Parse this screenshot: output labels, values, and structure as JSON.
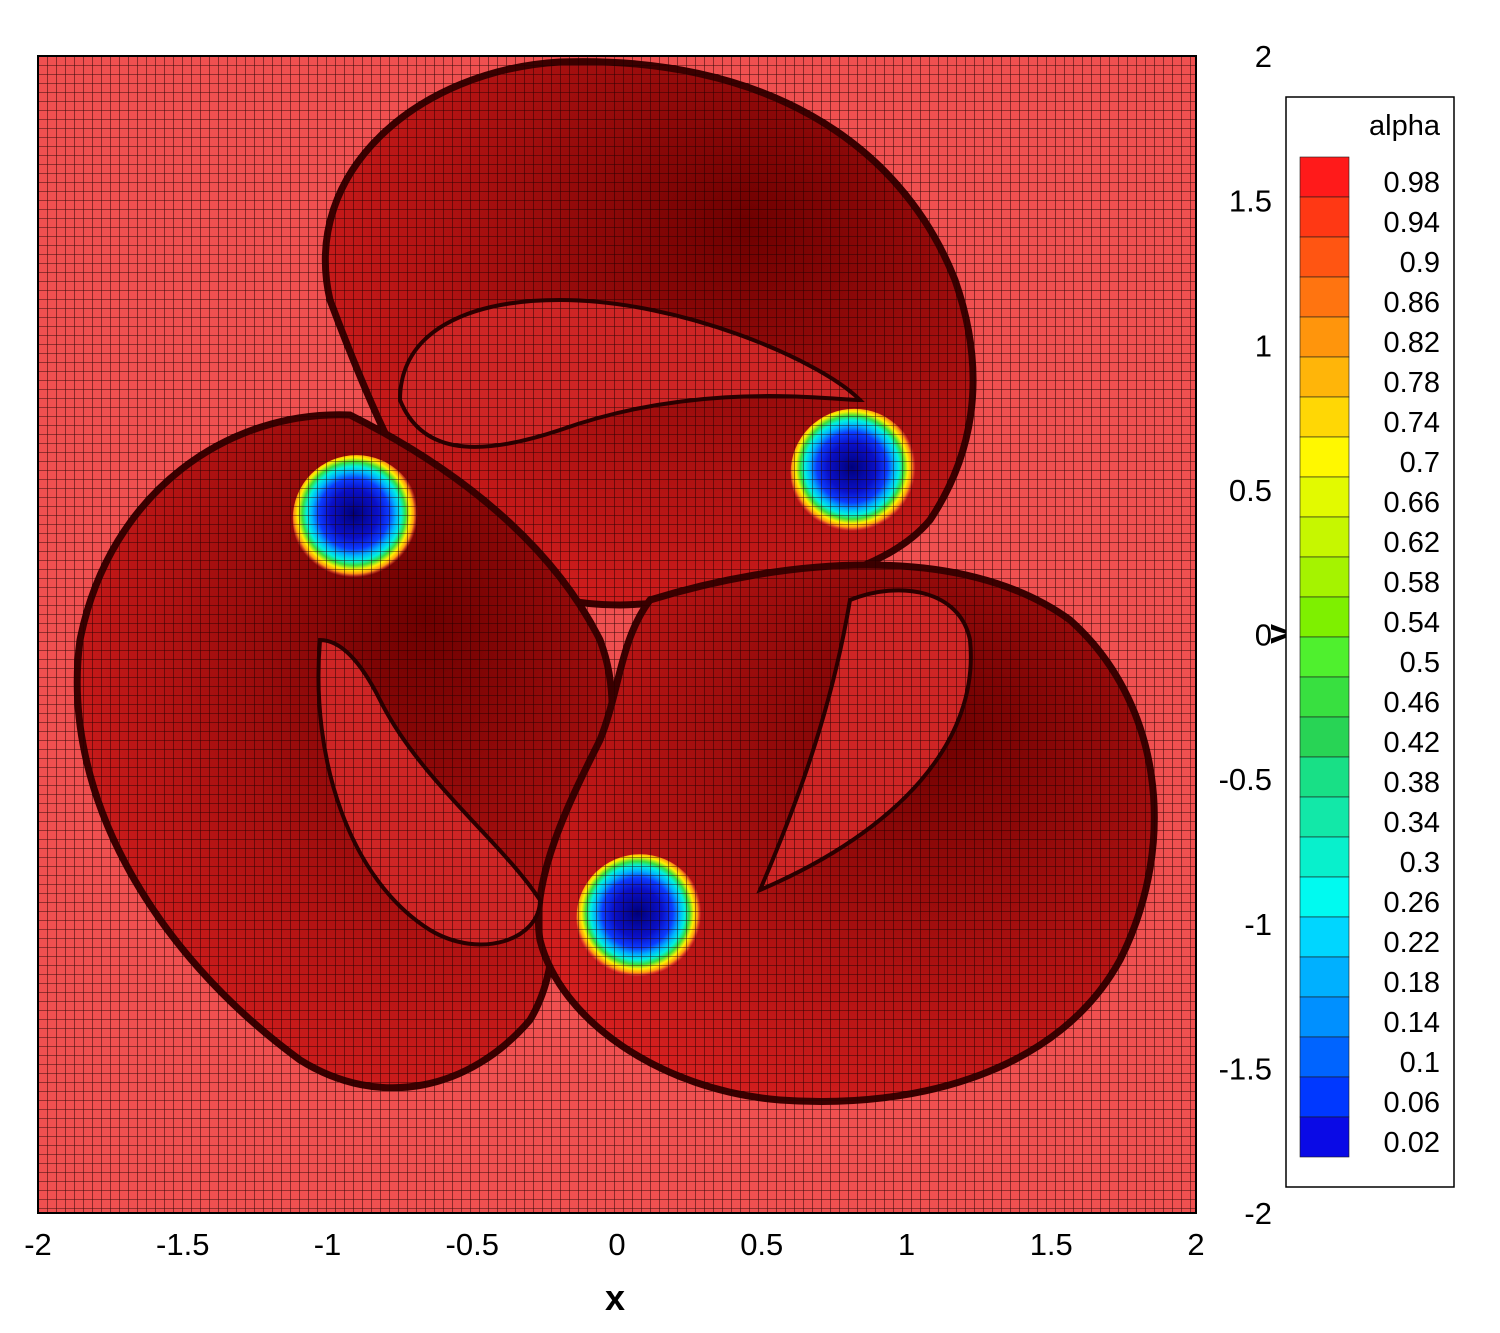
{
  "chart_data": {
    "type": "heatmap",
    "title": "",
    "xlabel": "x",
    "ylabel": "y",
    "xlim": [
      -2,
      2
    ],
    "ylim": [
      -2,
      2
    ],
    "xticks": [
      "-2",
      "-1.5",
      "-1",
      "-0.5",
      "0",
      "0.5",
      "1",
      "1.5",
      "2"
    ],
    "yticks": [
      "2",
      "1.5",
      "1",
      "0.5",
      "0",
      "-0.5",
      "-1",
      "-1.5",
      "-2"
    ],
    "grid": true,
    "legend_position": "right",
    "field": "alpha",
    "colorbar": {
      "title": "alpha",
      "levels": [
        "0.98",
        "0.94",
        "0.9",
        "0.86",
        "0.82",
        "0.78",
        "0.74",
        "0.7",
        "0.66",
        "0.62",
        "0.58",
        "0.54",
        "0.5",
        "0.46",
        "0.42",
        "0.38",
        "0.34",
        "0.3",
        "0.26",
        "0.22",
        "0.18",
        "0.14",
        "0.1",
        "0.06",
        "0.02"
      ],
      "colors": [
        "#ff1a1a",
        "#ff3814",
        "#ff5512",
        "#ff7410",
        "#ff950c",
        "#ffb509",
        "#ffd705",
        "#fff800",
        "#e2fa00",
        "#c6f700",
        "#a5f300",
        "#7ef000",
        "#4ff02e",
        "#38e040",
        "#28d455",
        "#18e086",
        "#12e8a8",
        "#08f0cc",
        "#00faf0",
        "#00d6ff",
        "#00b0ff",
        "#0090ff",
        "#0064ff",
        "#0038ff",
        "#0a0ae6"
      ]
    },
    "base_color": "#f05050",
    "bubbles": [
      {
        "x": -0.9,
        "y": 0.4,
        "radius": 0.22,
        "alpha_min": 0.02
      },
      {
        "x": 0.82,
        "y": 0.56,
        "radius": 0.22,
        "alpha_min": 0.02
      },
      {
        "x": 0.08,
        "y": -0.98,
        "radius": 0.22,
        "alpha_min": 0.02
      }
    ]
  }
}
